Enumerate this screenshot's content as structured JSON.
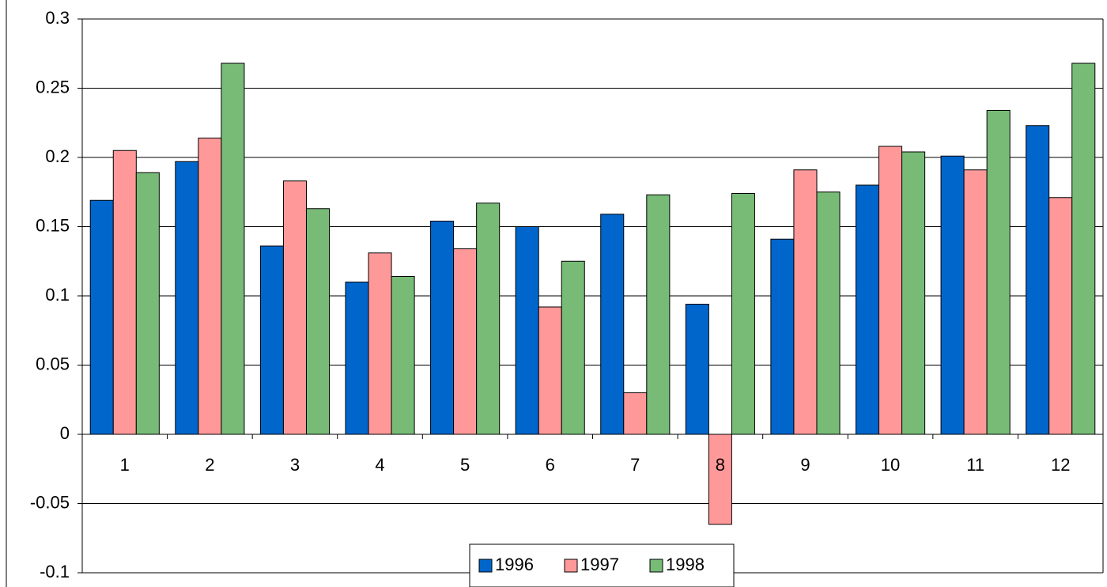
{
  "chart_data": {
    "type": "bar",
    "categories": [
      "1",
      "2",
      "3",
      "4",
      "5",
      "6",
      "7",
      "8",
      "9",
      "10",
      "11",
      "12"
    ],
    "series": [
      {
        "name": "1996",
        "color": "#0066cc",
        "values": [
          0.169,
          0.197,
          0.136,
          0.11,
          0.154,
          0.15,
          0.159,
          0.094,
          0.141,
          0.18,
          0.201,
          0.223
        ]
      },
      {
        "name": "1997",
        "color": "#ff9999",
        "values": [
          0.205,
          0.214,
          0.183,
          0.131,
          0.134,
          0.092,
          0.03,
          -0.065,
          0.191,
          0.208,
          0.191,
          0.171
        ]
      },
      {
        "name": "1998",
        "color": "#77bb77",
        "values": [
          0.189,
          0.268,
          0.163,
          0.114,
          0.167,
          0.125,
          0.173,
          0.174,
          0.175,
          0.204,
          0.234,
          0.268
        ]
      }
    ],
    "ylim": [
      -0.1,
      0.3
    ],
    "yticks": [
      -0.1,
      -0.05,
      0,
      0.05,
      0.1,
      0.15,
      0.2,
      0.25,
      0.3
    ],
    "grid": true,
    "legend": "bottom"
  }
}
